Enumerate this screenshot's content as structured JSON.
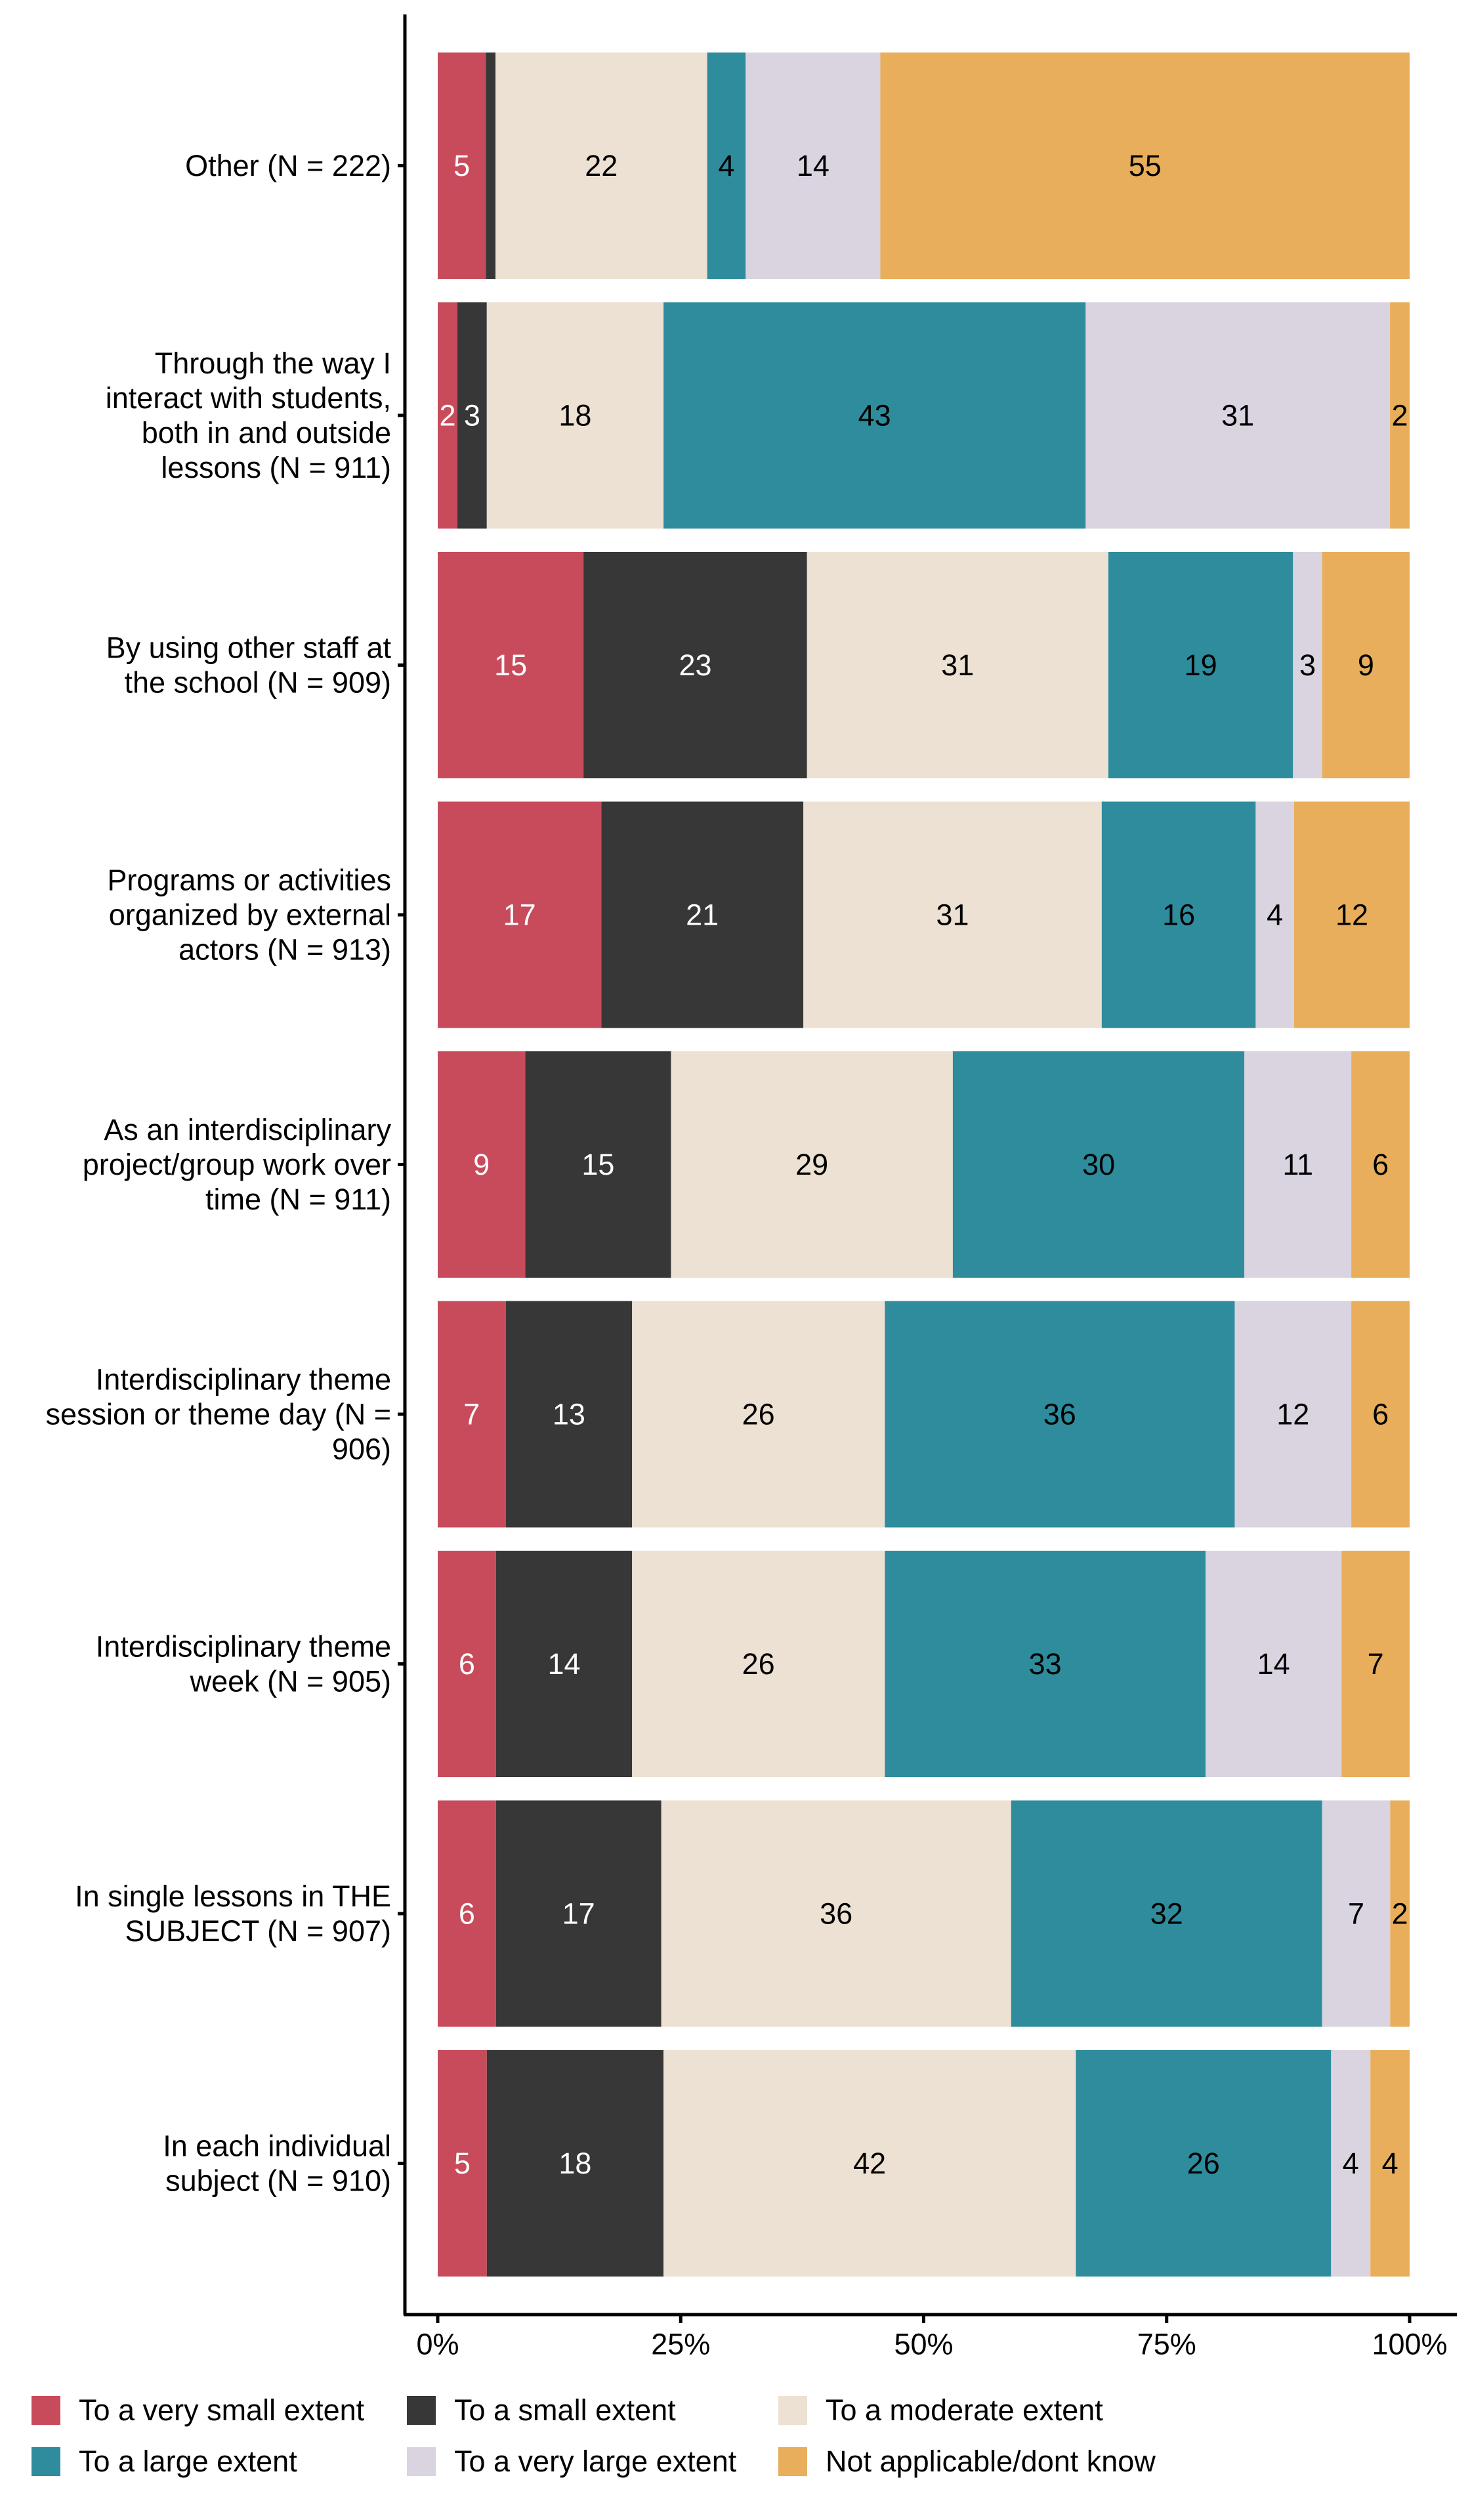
{
  "chart_data": {
    "type": "bar",
    "orientation": "horizontal",
    "stacked": true,
    "title": "",
    "xlabel": "",
    "ylabel": "",
    "xlim": [
      0,
      100
    ],
    "x_ticks": [
      0,
      25,
      50,
      75,
      100
    ],
    "x_tick_labels": [
      "0%",
      "25%",
      "50%",
      "75%",
      "100%"
    ],
    "grid": false,
    "legend_position": "bottom",
    "categories": [
      "Other (N = 222)",
      "Through the way I interact with students, both in and outside lessons (N = 911)",
      "By using other staff at the school (N = 909)",
      "Programs or activities organized by external actors (N = 913)",
      "As an interdisciplinary project/group work over time (N = 911)",
      "Interdisciplinary theme session or theme day (N = 906)",
      "Interdisciplinary theme week (N = 905)",
      "In single lessons in THE SUBJECT (N = 907)",
      "In each individual subject (N = 910)"
    ],
    "category_label_lines": [
      [
        "Other (N = 222)"
      ],
      [
        "Through the way I",
        "interact with students,",
        "both in and outside",
        "lessons (N = 911)"
      ],
      [
        "By using other staff at",
        "the school (N = 909)"
      ],
      [
        "Programs or activities",
        "organized by external",
        "actors (N = 913)"
      ],
      [
        "As an interdisciplinary",
        "project/group work over",
        "time (N = 911)"
      ],
      [
        "Interdisciplinary theme",
        "session or theme day (N =",
        "906)"
      ],
      [
        "Interdisciplinary theme",
        "week (N = 905)"
      ],
      [
        "In single lessons in THE",
        "SUBJECT (N = 907)"
      ],
      [
        "In each individual",
        "subject (N = 910)"
      ]
    ],
    "series": [
      {
        "name": "To a very small extent",
        "color": "#c84b5c",
        "label_color": "#ffffff",
        "values": [
          5,
          2,
          15,
          17,
          9,
          7,
          6,
          6,
          5
        ],
        "labels": [
          "5",
          "2",
          "15",
          "17",
          "9",
          "7",
          "6",
          "6",
          "5"
        ]
      },
      {
        "name": "To a small extent",
        "color": "#373737",
        "label_color": "#ffffff",
        "values": [
          1,
          3,
          23,
          21,
          15,
          13,
          14,
          17,
          18
        ],
        "labels": [
          "",
          "3",
          "23",
          "21",
          "15",
          "13",
          "14",
          "17",
          "18"
        ]
      },
      {
        "name": "To a moderate extent",
        "color": "#ece1d2",
        "label_color": "#000000",
        "values": [
          22,
          18,
          31,
          31,
          29,
          26,
          26,
          36,
          42
        ],
        "labels": [
          "22",
          "18",
          "31",
          "31",
          "29",
          "26",
          "26",
          "36",
          "42"
        ]
      },
      {
        "name": "To a large extent",
        "color": "#2e8c9d",
        "label_color": "#000000",
        "values": [
          4,
          43,
          19,
          16,
          30,
          36,
          33,
          32,
          26
        ],
        "labels": [
          "4",
          "43",
          "19",
          "16",
          "30",
          "36",
          "33",
          "32",
          "26"
        ]
      },
      {
        "name": "To a very large extent",
        "color": "#dad3e0",
        "label_color": "#000000",
        "values": [
          14,
          31,
          3,
          4,
          11,
          12,
          14,
          7,
          4
        ],
        "labels": [
          "14",
          "31",
          "3",
          "4",
          "11",
          "12",
          "14",
          "7",
          "4"
        ]
      },
      {
        "name": "Not applicable/dont know",
        "color": "#e8ae5b",
        "label_color": "#000000",
        "values": [
          55,
          2,
          9,
          12,
          6,
          6,
          7,
          2,
          4
        ],
        "labels": [
          "55",
          "2",
          "9",
          "12",
          "6",
          "6",
          "7",
          "2",
          "4"
        ]
      }
    ]
  },
  "legend": {
    "items": [
      {
        "label": "To a very small extent",
        "color": "#c84b5c"
      },
      {
        "label": "To a small extent",
        "color": "#373737"
      },
      {
        "label": "To a moderate extent",
        "color": "#ece1d2"
      },
      {
        "label": "To a large extent",
        "color": "#2e8c9d"
      },
      {
        "label": "To a very large extent",
        "color": "#dad3e0"
      },
      {
        "label": "Not applicable/dont know",
        "color": "#e8ae5b"
      }
    ]
  }
}
